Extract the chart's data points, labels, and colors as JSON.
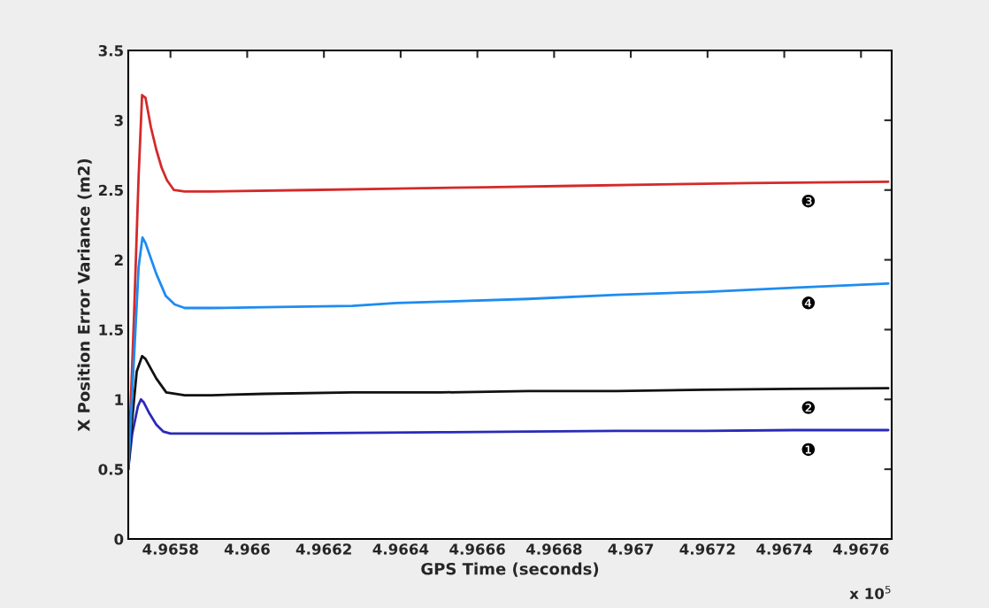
{
  "chart_data": {
    "type": "line",
    "xlabel": "GPS Time (seconds)",
    "ylabel": "X Position Error Variance (m2)",
    "xlim": [
      4.96569,
      4.96768
    ],
    "xticks": [
      4.9658,
      4.966,
      4.9662,
      4.9664,
      4.9666,
      4.9668,
      4.967,
      4.9672,
      4.9674,
      4.9676
    ],
    "ylim": [
      0,
      3.5
    ],
    "yticks": [
      0,
      0.5,
      1,
      1.5,
      2,
      2.5,
      3,
      3.5
    ],
    "grid": false,
    "legend": false,
    "marker": "none",
    "line_style": "solid",
    "annotations": [
      "x 10$^{5}$"
    ],
    "series": [
      {
        "name": "❶",
        "color": "#2a2ab8",
        "x": [
          4.96569,
          4.9657,
          4.965715,
          4.965723,
          4.96573,
          4.965745,
          4.965763,
          4.965781,
          4.9658,
          4.965837,
          4.965906,
          4.966044,
          4.966274,
          4.966504,
          4.966733,
          4.966963,
          4.967193,
          4.967423,
          4.967671
        ],
        "values": [
          0.5,
          0.75,
          0.95,
          1.0,
          0.98,
          0.9,
          0.82,
          0.77,
          0.755,
          0.755,
          0.755,
          0.755,
          0.76,
          0.765,
          0.77,
          0.775,
          0.775,
          0.78,
          0.78
        ]
      },
      {
        "name": "❷",
        "color": "#111111",
        "x": [
          4.96569,
          4.9657,
          4.965712,
          4.965726,
          4.965735,
          4.965763,
          4.965789,
          4.965837,
          4.965906,
          4.966044,
          4.966274,
          4.966504,
          4.966733,
          4.966963,
          4.967193,
          4.967423,
          4.967671
        ],
        "values": [
          0.5,
          0.85,
          1.2,
          1.31,
          1.29,
          1.15,
          1.05,
          1.03,
          1.03,
          1.04,
          1.05,
          1.05,
          1.06,
          1.06,
          1.07,
          1.075,
          1.08
        ]
      },
      {
        "name": "❸",
        "color": "#d42a2a",
        "x": [
          4.96569,
          4.965705,
          4.965717,
          4.965726,
          4.965735,
          4.965749,
          4.965763,
          4.965777,
          4.965791,
          4.965809,
          4.965837,
          4.965906,
          4.966159,
          4.966389,
          4.966619,
          4.966849,
          4.967078,
          4.967308,
          4.967671
        ],
        "values": [
          0.5,
          1.6,
          2.6,
          3.18,
          3.16,
          2.95,
          2.79,
          2.66,
          2.57,
          2.5,
          2.49,
          2.49,
          2.5,
          2.51,
          2.52,
          2.53,
          2.54,
          2.55,
          2.56
        ]
      },
      {
        "name": "❹",
        "color": "#1e8cf0",
        "x": [
          4.96569,
          4.965705,
          4.965717,
          4.965727,
          4.965735,
          4.965763,
          4.965788,
          4.965811,
          4.965837,
          4.965906,
          4.966044,
          4.966274,
          4.966389,
          4.966504,
          4.966733,
          4.966963,
          4.967193,
          4.967423,
          4.967671
        ],
        "values": [
          0.5,
          1.3,
          1.95,
          2.16,
          2.12,
          1.9,
          1.74,
          1.68,
          1.655,
          1.655,
          1.66,
          1.67,
          1.69,
          1.7,
          1.72,
          1.75,
          1.77,
          1.8,
          1.83
        ]
      }
    ]
  }
}
